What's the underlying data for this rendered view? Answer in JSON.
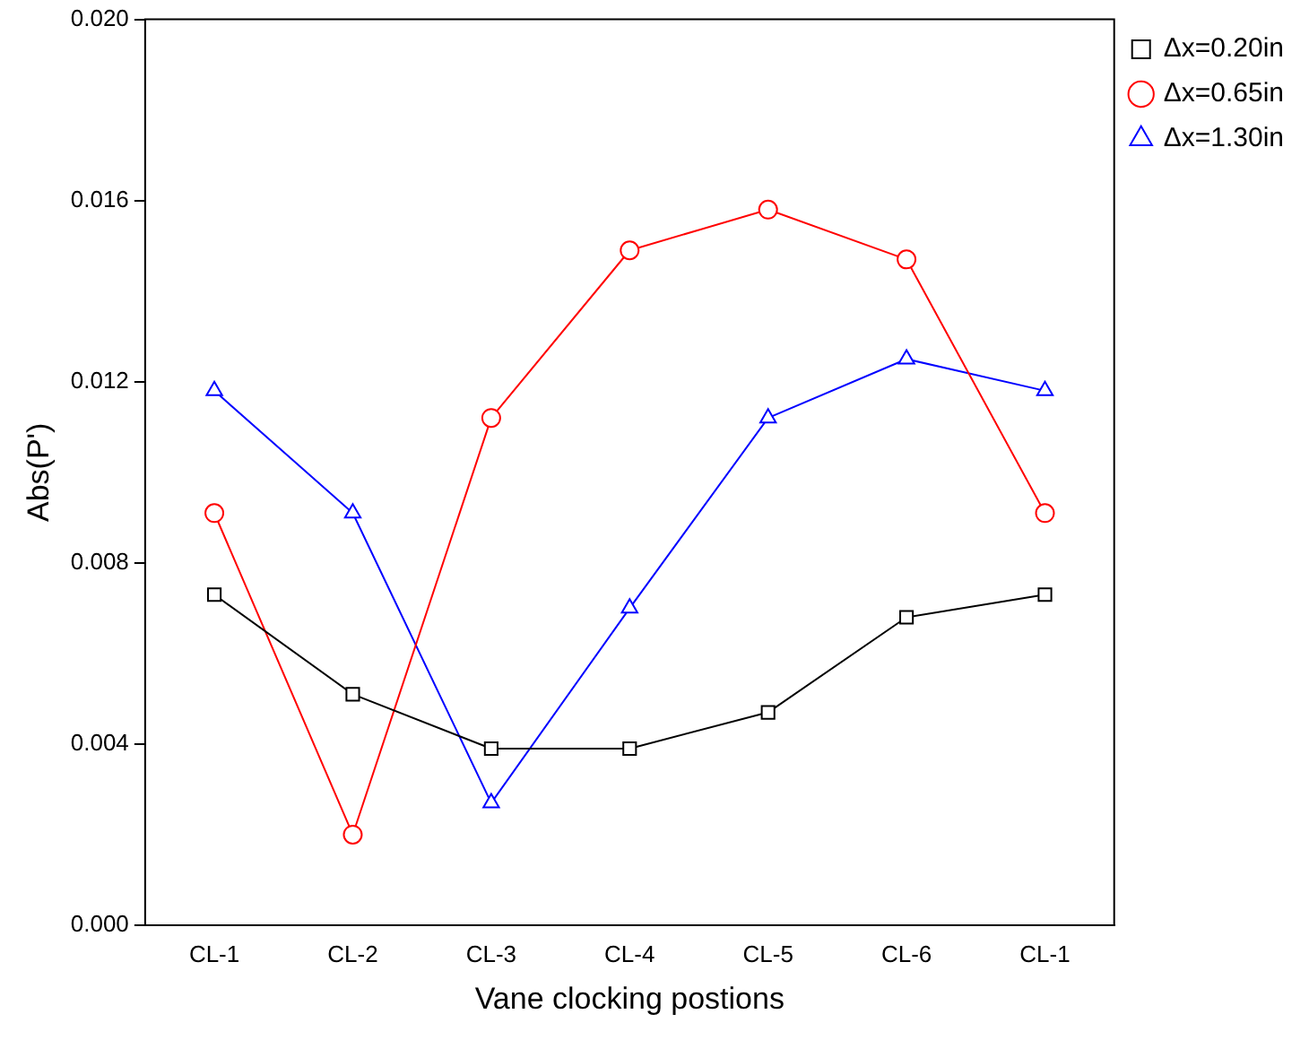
{
  "chart_data": {
    "type": "line",
    "xlabel": "Vane clocking postions",
    "ylabel": "Abs(P')",
    "categories": [
      "CL-1",
      "CL-2",
      "CL-3",
      "CL-4",
      "CL-5",
      "CL-6",
      "CL-1"
    ],
    "series": [
      {
        "name": "Δx=0.20in",
        "color": "#000000",
        "marker": "square",
        "values": [
          0.0073,
          0.0051,
          0.0039,
          0.0039,
          0.0047,
          0.0068,
          0.0073
        ]
      },
      {
        "name": "Δx=0.65in",
        "color": "#ff0000",
        "marker": "circle",
        "values": [
          0.0091,
          0.002,
          0.0112,
          0.0149,
          0.0158,
          0.0147,
          0.0091
        ]
      },
      {
        "name": "Δx=1.30in",
        "color": "#0000ff",
        "marker": "triangle",
        "values": [
          0.0118,
          0.0091,
          0.0027,
          0.007,
          0.0112,
          0.0125,
          0.0118
        ]
      }
    ],
    "ylim": [
      0,
      0.02
    ],
    "yticks": [
      {
        "value": 0,
        "label": "0.000"
      },
      {
        "value": 0.004,
        "label": "0.004"
      },
      {
        "value": 0.008,
        "label": "0.008"
      },
      {
        "value": 0.012,
        "label": "0.012"
      },
      {
        "value": 0.016,
        "label": "0.016"
      },
      {
        "value": 0.02,
        "label": "0.020"
      }
    ],
    "grid": false,
    "legend": "top right",
    "line_style": "solid"
  }
}
